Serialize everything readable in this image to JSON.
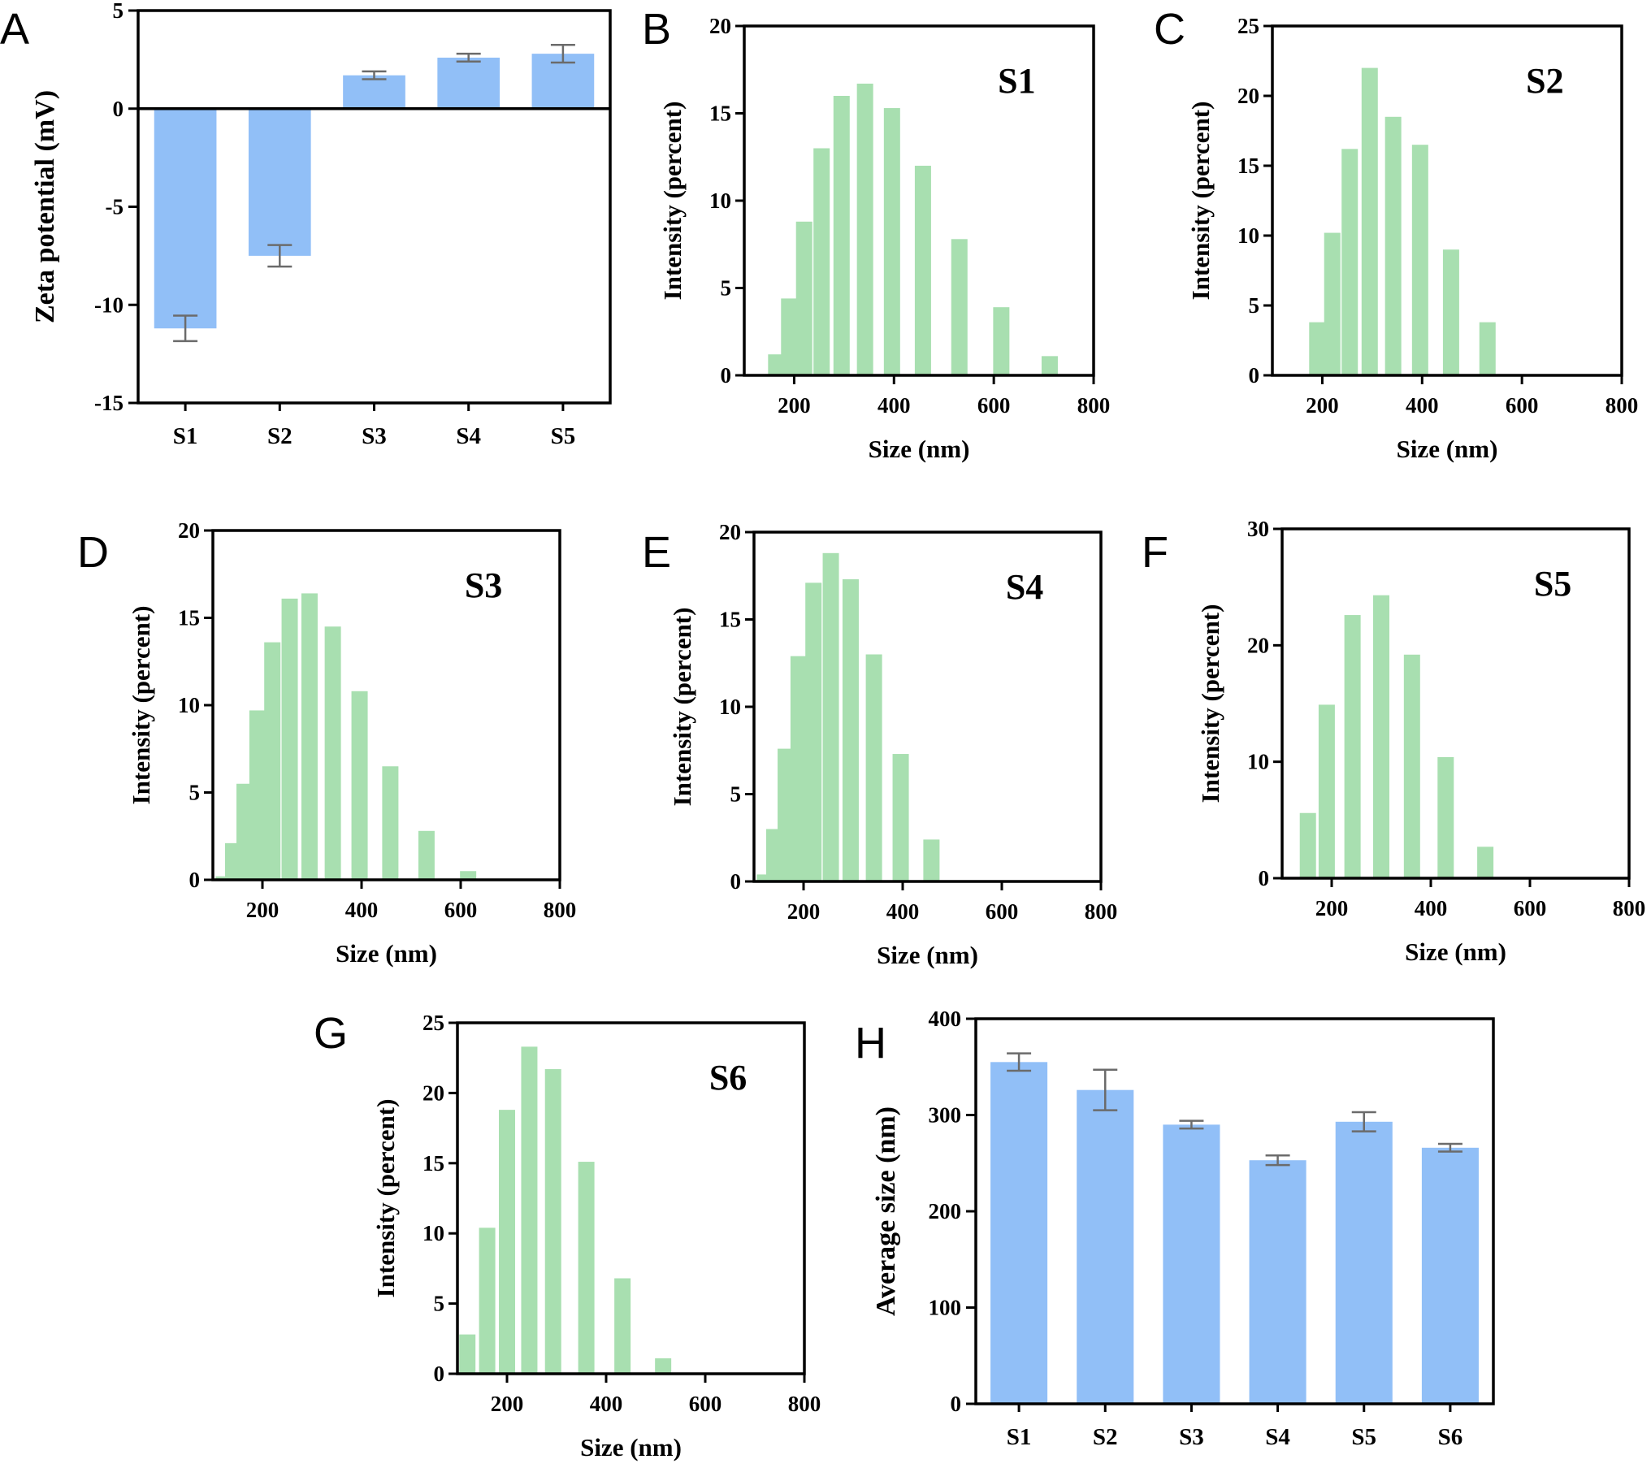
{
  "colors": {
    "bar_blue": "#91bff7",
    "hist_green": "#a8dfb0",
    "axis": "#000000",
    "error_bar": "#6b6b6b"
  },
  "chart_data": [
    {
      "id": "A",
      "panel_label": "A",
      "type": "bar",
      "categories": [
        "S1",
        "S2",
        "S3",
        "S4",
        "S5"
      ],
      "values": [
        -11.2,
        -7.5,
        1.7,
        2.6,
        2.8
      ],
      "errors": [
        0.65,
        0.55,
        0.2,
        0.2,
        0.45
      ],
      "ylabel": "Zeta potential (mV)",
      "xlabel": "",
      "ylim": [
        -15,
        5
      ],
      "yticks": [
        5,
        0,
        -5,
        -10,
        -15
      ],
      "zero_line": true,
      "grid": false
    },
    {
      "id": "B",
      "panel_label": "B",
      "type": "bar",
      "inset_label": "S1",
      "xlabel": "Size (nm)",
      "ylabel": "Intensity (percent)",
      "xlim": [
        100,
        800
      ],
      "ylim": [
        0,
        20
      ],
      "xticks": [
        200,
        400,
        600,
        800
      ],
      "yticks": [
        0,
        5,
        10,
        15,
        20
      ],
      "x": [
        164,
        190,
        220,
        255,
        295,
        342,
        396,
        458,
        531,
        615,
        712
      ],
      "values": [
        1.2,
        4.4,
        8.8,
        13.0,
        16.0,
        16.7,
        15.3,
        12.0,
        7.8,
        3.9,
        1.1
      ],
      "grid": false
    },
    {
      "id": "C",
      "panel_label": "C",
      "type": "bar",
      "inset_label": "S2",
      "xlabel": "Size (nm)",
      "ylabel": "Intensity (percent)",
      "xlim": [
        100,
        800
      ],
      "ylim": [
        0,
        25
      ],
      "xticks": [
        200,
        400,
        600,
        800
      ],
      "yticks": [
        0,
        5,
        10,
        15,
        20,
        25
      ],
      "x": [
        190,
        220,
        255,
        295,
        342,
        396,
        458,
        531
      ],
      "values": [
        3.8,
        10.2,
        16.2,
        22.0,
        18.5,
        16.5,
        9.0,
        3.8
      ],
      "grid": false
    },
    {
      "id": "D",
      "panel_label": "D",
      "type": "bar",
      "inset_label": "S3",
      "xlabel": "Size (nm)",
      "ylabel": "Intensity (percent)",
      "xlim": [
        100,
        800
      ],
      "ylim": [
        0,
        20
      ],
      "xticks": [
        200,
        400,
        600,
        800
      ],
      "yticks": [
        0,
        5,
        10,
        15,
        20
      ],
      "x": [
        122,
        141,
        164,
        190,
        220,
        255,
        295,
        342,
        396,
        458,
        531,
        615
      ],
      "values": [
        0.2,
        2.1,
        5.5,
        9.7,
        13.6,
        16.1,
        16.4,
        14.5,
        10.8,
        6.5,
        2.8,
        0.5
      ],
      "grid": false
    },
    {
      "id": "E",
      "panel_label": "E",
      "type": "bar",
      "inset_label": "S4",
      "xlabel": "Size (nm)",
      "ylabel": "Intensity (percent)",
      "xlim": [
        100,
        800
      ],
      "ylim": [
        0,
        20
      ],
      "xticks": [
        200,
        400,
        600,
        800
      ],
      "yticks": [
        0,
        5,
        10,
        15,
        20
      ],
      "x": [
        122,
        141,
        164,
        190,
        220,
        255,
        295,
        342,
        396,
        458
      ],
      "values": [
        0.4,
        3.0,
        7.6,
        12.9,
        17.1,
        18.8,
        17.3,
        13.0,
        7.3,
        2.4
      ],
      "grid": false
    },
    {
      "id": "F",
      "panel_label": "F",
      "type": "bar",
      "inset_label": "S5",
      "xlabel": "Size (nm)",
      "ylabel": "Intensity (percent)",
      "xlim": [
        100,
        800
      ],
      "ylim": [
        0,
        30
      ],
      "xticks": [
        200,
        400,
        600,
        800
      ],
      "yticks": [
        0,
        10,
        20,
        30
      ],
      "x": [
        152,
        190,
        242,
        300,
        362,
        430,
        510
      ],
      "values": [
        5.6,
        14.9,
        22.6,
        24.3,
        19.2,
        10.4,
        2.7
      ],
      "grid": false
    },
    {
      "id": "G",
      "panel_label": "G",
      "type": "bar",
      "inset_label": "S6",
      "xlabel": "Size (nm)",
      "ylabel": "Intensity (percent)",
      "xlim": [
        100,
        800
      ],
      "ylim": [
        0,
        25
      ],
      "xticks": [
        200,
        400,
        600,
        800
      ],
      "yticks": [
        0,
        5,
        10,
        15,
        20,
        25
      ],
      "x": [
        120,
        160,
        200,
        245,
        293,
        360,
        433,
        515
      ],
      "values": [
        2.8,
        10.4,
        18.8,
        23.3,
        21.7,
        15.1,
        6.8,
        1.1
      ],
      "grid": false
    },
    {
      "id": "H",
      "panel_label": "H",
      "type": "bar",
      "categories": [
        "S1",
        "S2",
        "S3",
        "S4",
        "S5",
        "S6"
      ],
      "values": [
        355,
        326,
        290,
        253,
        293,
        266
      ],
      "errors": [
        9,
        21,
        4,
        5,
        10,
        4
      ],
      "ylabel": "Average size (nm)",
      "xlabel": "",
      "ylim": [
        0,
        400
      ],
      "yticks": [
        0,
        100,
        200,
        300,
        400
      ],
      "grid": false
    }
  ]
}
